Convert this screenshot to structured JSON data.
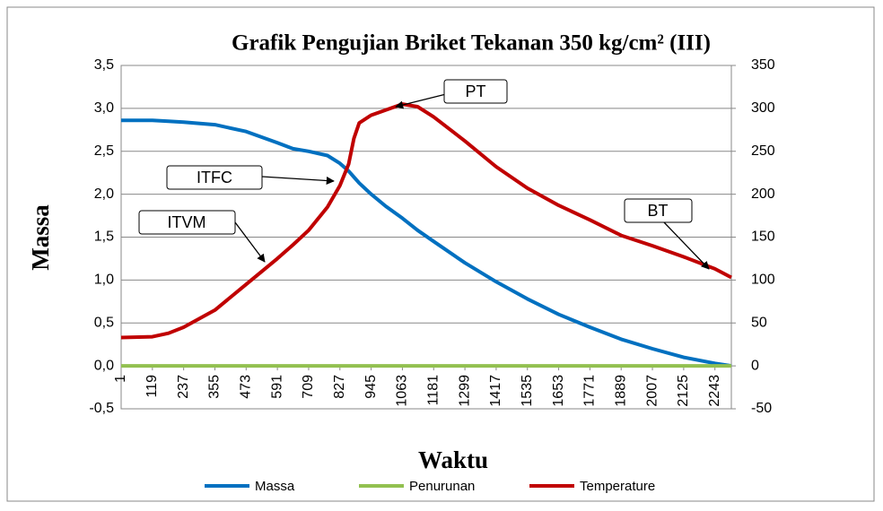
{
  "chart_data": {
    "type": "line",
    "title": "Grafik Pengujian Briket Tekanan 350 kg/cm² (III)",
    "x_label": "Waktu",
    "y_label": "Massa",
    "x": [
      1,
      119,
      180,
      237,
      355,
      473,
      591,
      650,
      709,
      780,
      827,
      860,
      880,
      900,
      945,
      1000,
      1063,
      1120,
      1181,
      1299,
      1417,
      1535,
      1653,
      1771,
      1889,
      2007,
      2125,
      2243,
      2305
    ],
    "xlim": [
      1,
      2305
    ],
    "xticks": [
      1,
      119,
      237,
      355,
      473,
      591,
      709,
      827,
      945,
      1063,
      1181,
      1299,
      1417,
      1535,
      1653,
      1771,
      1889,
      2007,
      2125,
      2243
    ],
    "ylim": [
      -0.5,
      3.5
    ],
    "yticks": [
      {
        "value": -0.5,
        "label": "-0,5"
      },
      {
        "value": 0,
        "label": "0,0"
      },
      {
        "value": 0.5,
        "label": "0,5"
      },
      {
        "value": 1,
        "label": "1,0"
      },
      {
        "value": 1.5,
        "label": "1,5"
      },
      {
        "value": 2,
        "label": "2,0"
      },
      {
        "value": 2.5,
        "label": "2,5"
      },
      {
        "value": 3,
        "label": "3,0"
      },
      {
        "value": 3.5,
        "label": "3,5"
      }
    ],
    "y2lim": [
      -50,
      350
    ],
    "y2ticks": [
      -50,
      0,
      50,
      100,
      150,
      200,
      250,
      300,
      350
    ],
    "grid": true,
    "legend": "bottom",
    "series": [
      {
        "name": "Massa",
        "color": "#0070c0",
        "values": [
          2.86,
          2.86,
          2.85,
          2.84,
          2.81,
          2.73,
          2.6,
          2.53,
          2.5,
          2.45,
          2.36,
          2.27,
          2.2,
          2.13,
          2.0,
          1.86,
          1.72,
          1.58,
          1.45,
          1.2,
          0.98,
          0.78,
          0.6,
          0.45,
          0.31,
          0.2,
          0.1,
          0.03,
          0.0
        ]
      },
      {
        "name": "Penurunan",
        "color": "#92c050",
        "values": [
          0,
          0,
          0,
          0,
          0,
          0,
          0,
          0,
          0,
          0,
          0,
          0,
          0,
          0,
          0,
          0,
          0,
          0,
          0,
          0,
          0,
          0,
          0,
          0,
          0,
          0,
          0,
          0,
          0
        ]
      },
      {
        "name": "Temperature",
        "color": "#c00000",
        "axis": "y2",
        "values": [
          33,
          34,
          38,
          45,
          65,
          95,
          125,
          141,
          158,
          185,
          210,
          235,
          265,
          283,
          292,
          298,
          305,
          302,
          290,
          262,
          232,
          207,
          187,
          170,
          152,
          140,
          127,
          113,
          103
        ]
      }
    ],
    "annotations": [
      "PT",
      "ITFC",
      "ITVM",
      "BT"
    ]
  }
}
